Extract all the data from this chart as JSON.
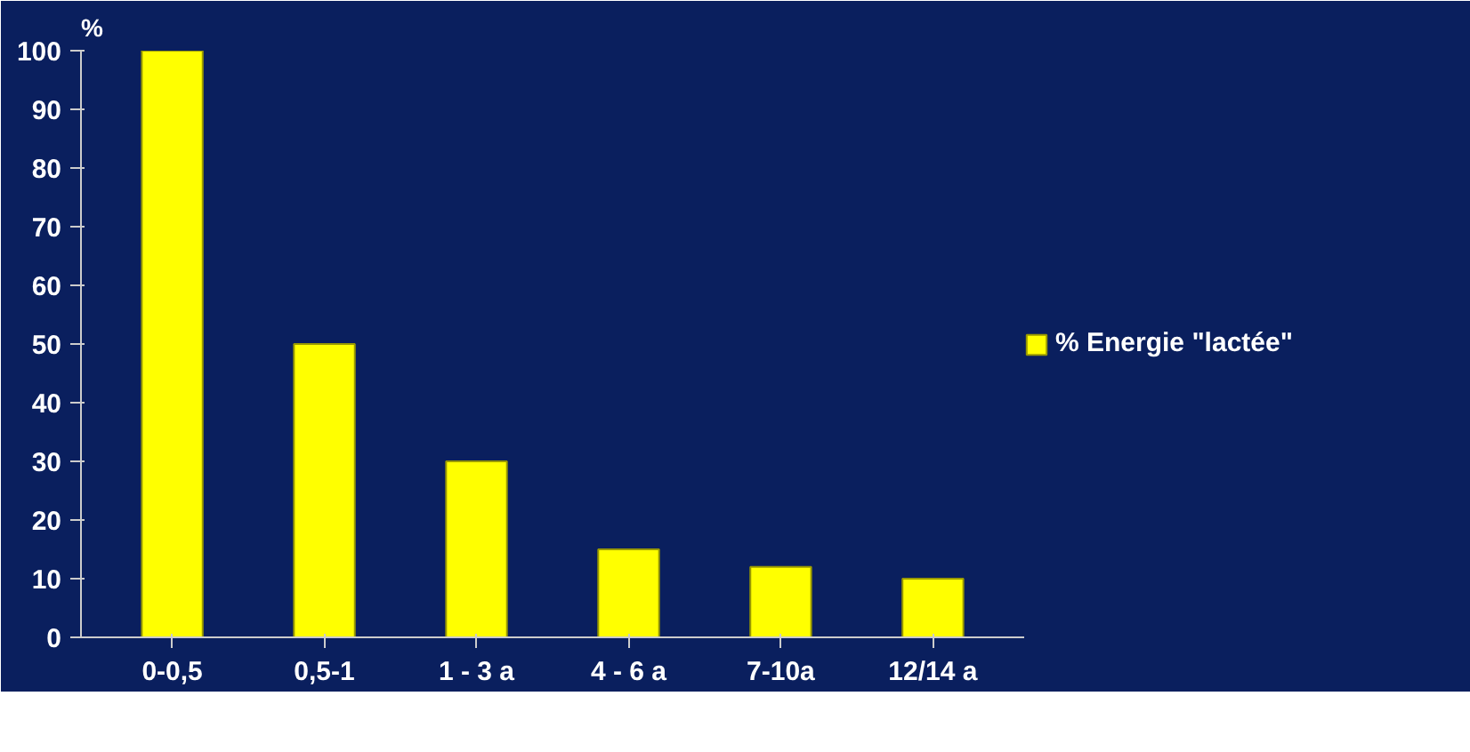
{
  "chart_data": {
    "type": "bar",
    "ylabel": "%",
    "categories": [
      "0-0,5",
      "0,5-1",
      "1 - 3 a",
      "4 - 6 a",
      "7-10a",
      "12/14 a"
    ],
    "series": [
      {
        "name": "% Energie \"lactée\"",
        "color": "#ffff00",
        "values": [
          100,
          50,
          30,
          15,
          12,
          10
        ]
      }
    ],
    "ylim": [
      0,
      100
    ],
    "yticks": [
      0,
      10,
      20,
      30,
      40,
      50,
      60,
      70,
      80,
      90,
      100
    ],
    "grid": false,
    "legend": "right"
  }
}
